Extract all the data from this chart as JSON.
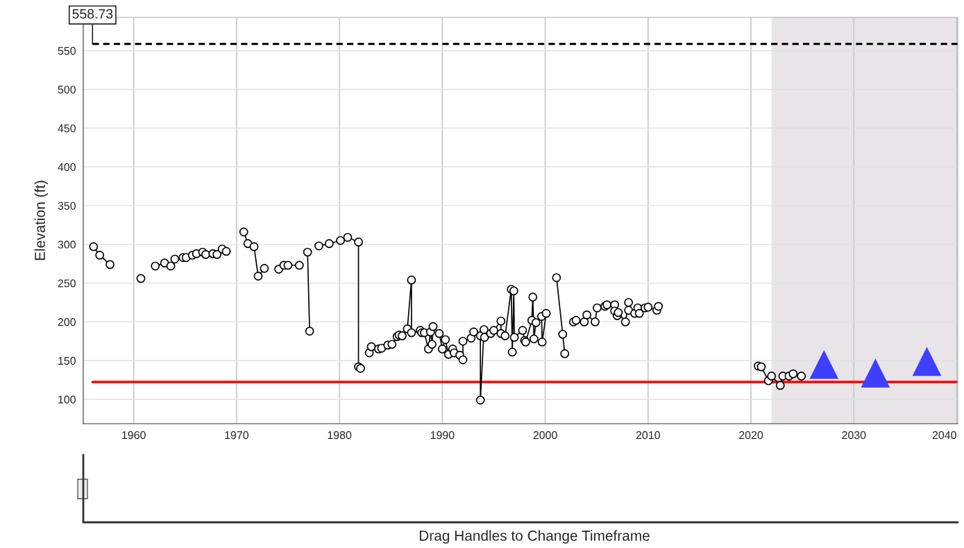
{
  "chart_data": {
    "type": "line",
    "ylabel": "Elevation (ft)",
    "xlim": [
      1955.1,
      2040.1
    ],
    "xticks": [
      1960,
      1970,
      1980,
      1990,
      2000,
      2010,
      2020,
      2030,
      2040
    ],
    "ylim": [
      68.6,
      593
    ],
    "yticks": [
      100,
      150,
      200,
      250,
      300,
      350,
      400,
      450,
      500,
      550
    ],
    "grid": true,
    "series": [
      {
        "color": "#000000",
        "marker": "circle",
        "line_style": "solid",
        "x": [
          1956.1,
          1956.7,
          1957.7,
          null,
          1960.7,
          null,
          1962.1,
          1963.0,
          1963.6,
          1964.0,
          1964.8,
          1965.1,
          1965.7,
          1966.1,
          1966.7,
          1967.0,
          1967.7,
          1968.1,
          1968.6,
          1969.0,
          null,
          1970.7,
          1971.1,
          1971.7,
          1972.1,
          1972.7,
          null,
          1974.1,
          1974.6,
          1975.0,
          1976.1,
          null,
          1976.9,
          1977.1,
          null,
          1978.0,
          1979.0,
          1980.1,
          1980.8,
          1981.85,
          1981.85,
          1982.05,
          null,
          1982.9,
          1983.1,
          1983.8,
          1984.1,
          1984.7,
          1985.1,
          1985.6,
          1985.8,
          1986.1,
          1986.6,
          1987.0,
          1987.0,
          1987.85,
          1988.0,
          1988.25,
          1988.65,
          1988.85,
          1989.0,
          1989.1,
          1989.7,
          1990.0,
          1990.3,
          1990.6,
          1991.0,
          1991.15,
          1991.7,
          1992.0,
          1992.0,
          1992.8,
          1993.05,
          1993.7,
          1993.7,
          1994.05,
          1994.1,
          1994.7,
          1995.0,
          1995.7,
          1995.7,
          1996.1,
          1996.7,
          1996.8,
          1996.95,
          1997.0,
          1997.8,
          1998.0,
          1998.1,
          1998.7,
          1998.8,
          1998.9,
          1999.1,
          1999.65,
          1999.7,
          2000.1,
          null,
          2001.1,
          2001.7,
          2001.9,
          null,
          2002.75,
          2003.0,
          2003.8,
          2004.05,
          2004.85,
          2005.05,
          2005.8,
          2006.0,
          2006.75,
          2006.75,
          2007.0,
          2007.1,
          2007.8,
          2008.1,
          2008.1,
          2008.7,
          2009.0,
          2009.15,
          2009.7,
          2010.0,
          2010.85,
          2011.0,
          null,
          2020.7,
          2021.0,
          2021.7,
          2022.0,
          2022.85,
          2023.1,
          2023.7,
          2024.1,
          2024.9
        ],
        "values": [
          297,
          286,
          274,
          null,
          256,
          null,
          272,
          276,
          272,
          281,
          283,
          283,
          286,
          288,
          290,
          287,
          288,
          287,
          294,
          291,
          null,
          316,
          301,
          297,
          259,
          269,
          null,
          268,
          273,
          273,
          273,
          null,
          290,
          188,
          null,
          298,
          301,
          305,
          309,
          303,
          142,
          140,
          null,
          160,
          168,
          165,
          166,
          170,
          171,
          181,
          183,
          182,
          191,
          254,
          186,
          189,
          186,
          186,
          165,
          187,
          171,
          194,
          185,
          165,
          177,
          158,
          165,
          160,
          157,
          151,
          175,
          179,
          187,
          182,
          99,
          190,
          180,
          185,
          189,
          201,
          185,
          182,
          242,
          161,
          240,
          180,
          189,
          176,
          174,
          202,
          232,
          178,
          199,
          207,
          174,
          211,
          null,
          257,
          184,
          159,
          null,
          200,
          202,
          200,
          209,
          200,
          218,
          220,
          222,
          222,
          214,
          208,
          212,
          200,
          225,
          215,
          211,
          218,
          211,
          218,
          219,
          215,
          220,
          null,
          143,
          142,
          124,
          130,
          118,
          130,
          130,
          133,
          130
        ]
      },
      {
        "type": "scatter",
        "color": "#3f3fff",
        "marker": "triangle",
        "x": [
          2027.1,
          2032.1,
          2037.1
        ],
        "values": [
          145,
          134,
          149
        ]
      }
    ],
    "ref_lines": [
      {
        "axis": "y",
        "value": 558.73,
        "label": "558.73",
        "color": "#000000",
        "line_style": "dashed"
      },
      {
        "axis": "y",
        "value": 122.4,
        "color": "#ff0000",
        "line_style": "solid"
      }
    ],
    "bands": [
      {
        "axis": "x",
        "from": 2022.0,
        "to": 2040.1,
        "color": "#e8e4e8"
      }
    ],
    "annotations": [
      "Drag Handles to Change Timeframe"
    ]
  }
}
